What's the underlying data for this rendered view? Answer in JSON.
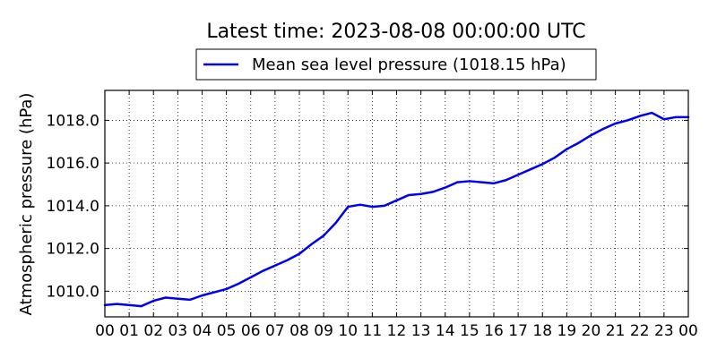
{
  "chart_data": {
    "type": "line",
    "title": "Latest time: 2023-08-08 00:00:00 UTC",
    "xlabel": "",
    "ylabel": "Atmospheric pressure (hPa)",
    "xlim": [
      0,
      24
    ],
    "ylim": [
      1008.8,
      1019.4
    ],
    "xtick_labels": [
      "00",
      "01",
      "02",
      "03",
      "04",
      "05",
      "06",
      "07",
      "08",
      "09",
      "10",
      "11",
      "12",
      "13",
      "14",
      "15",
      "16",
      "17",
      "18",
      "19",
      "20",
      "21",
      "22",
      "23",
      "00"
    ],
    "yticks": [
      1010.0,
      1012.0,
      1014.0,
      1016.0,
      1018.0
    ],
    "ytick_labels": [
      "1010.0",
      "1012.0",
      "1014.0",
      "1016.0",
      "1018.0"
    ],
    "grid": true,
    "legend_position": "top-center",
    "series": [
      {
        "name": "Mean sea level pressure (1018.15 hPa)",
        "color": "#0000ee",
        "x": [
          0,
          0.5,
          1,
          1.5,
          2,
          2.5,
          3,
          3.5,
          4,
          4.5,
          5,
          5.5,
          6,
          6.5,
          7,
          7.5,
          8,
          8.5,
          9,
          9.5,
          10,
          10.5,
          11,
          11.5,
          12,
          12.5,
          13,
          13.5,
          14,
          14.5,
          15,
          15.5,
          16,
          16.5,
          17,
          17.5,
          18,
          18.5,
          19,
          19.5,
          20,
          20.5,
          21,
          21.5,
          22,
          22.5,
          23,
          23.5,
          24
        ],
        "y": [
          1009.35,
          1009.4,
          1009.35,
          1009.3,
          1009.55,
          1009.7,
          1009.65,
          1009.6,
          1009.8,
          1009.95,
          1010.1,
          1010.35,
          1010.65,
          1010.95,
          1011.2,
          1011.45,
          1011.75,
          1012.2,
          1012.6,
          1013.2,
          1013.95,
          1014.05,
          1013.95,
          1014.0,
          1014.25,
          1014.5,
          1014.55,
          1014.65,
          1014.85,
          1015.1,
          1015.15,
          1015.1,
          1015.05,
          1015.2,
          1015.45,
          1015.7,
          1015.95,
          1016.25,
          1016.65,
          1016.95,
          1017.3,
          1017.6,
          1017.85,
          1018.0,
          1018.2,
          1018.35,
          1018.05,
          1018.15,
          1018.15
        ]
      }
    ]
  }
}
